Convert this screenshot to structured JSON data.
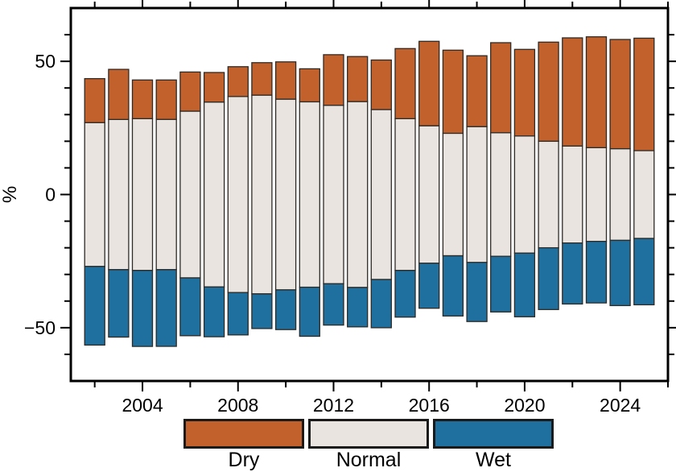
{
  "chart_data": {
    "type": "bar",
    "variant": "diverging-stacked-percentage",
    "title": "",
    "xlabel": "",
    "ylabel": "%",
    "grid": false,
    "legend_position": "bottom",
    "xlim": [
      2001,
      2026
    ],
    "ylim": [
      -70,
      70
    ],
    "x_major_ticks": [
      2004,
      2008,
      2012,
      2016,
      2020,
      2024
    ],
    "x_minor_step": 2,
    "y_major_ticks": [
      {
        "value": 50,
        "label": "50"
      },
      {
        "value": 0,
        "label": "0"
      },
      {
        "value": -50,
        "label": "−50"
      }
    ],
    "y_minor_step": 10,
    "layout_note": "Normal band centered on 0 (half above, half below); Dry stacked above it; Wet stacked below it",
    "x": [
      2002,
      2003,
      2004,
      2005,
      2006,
      2007,
      2008,
      2009,
      2010,
      2011,
      2012,
      2013,
      2014,
      2015,
      2016,
      2017,
      2018,
      2019,
      2020,
      2021,
      2022,
      2023,
      2024,
      2025
    ],
    "series": [
      {
        "name": "Dry",
        "color": "#C2612B",
        "values": [
          16.5,
          18.8,
          14.5,
          14.8,
          14.7,
          11.1,
          11.2,
          12.2,
          14.0,
          12.4,
          19.0,
          16.9,
          18.6,
          26.3,
          31.7,
          31.2,
          26.6,
          33.8,
          32.5,
          37.2,
          40.6,
          41.6,
          41.0,
          42.2
        ]
      },
      {
        "name": "Normal",
        "color": "#E9E4E0",
        "values": [
          54.0,
          56.4,
          57.0,
          56.4,
          62.6,
          69.4,
          73.6,
          74.6,
          71.6,
          69.6,
          67.0,
          69.8,
          63.8,
          57.0,
          51.6,
          46.0,
          51.0,
          46.4,
          44.0,
          40.0,
          36.4,
          35.2,
          34.4,
          33.0
        ]
      },
      {
        "name": "Wet",
        "color": "#1F6F9F",
        "values": [
          29.5,
          25.3,
          28.5,
          28.8,
          21.7,
          18.7,
          15.9,
          13.0,
          14.9,
          18.4,
          15.5,
          14.8,
          18.1,
          17.5,
          16.9,
          22.6,
          22.2,
          20.9,
          23.9,
          23.2,
          22.9,
          23.1,
          24.5,
          24.9
        ]
      }
    ]
  },
  "style": {
    "frame_color": "#000000",
    "bar_outline_color": "#2e2a26",
    "text_color": "#000000",
    "background": "#ffffff"
  }
}
